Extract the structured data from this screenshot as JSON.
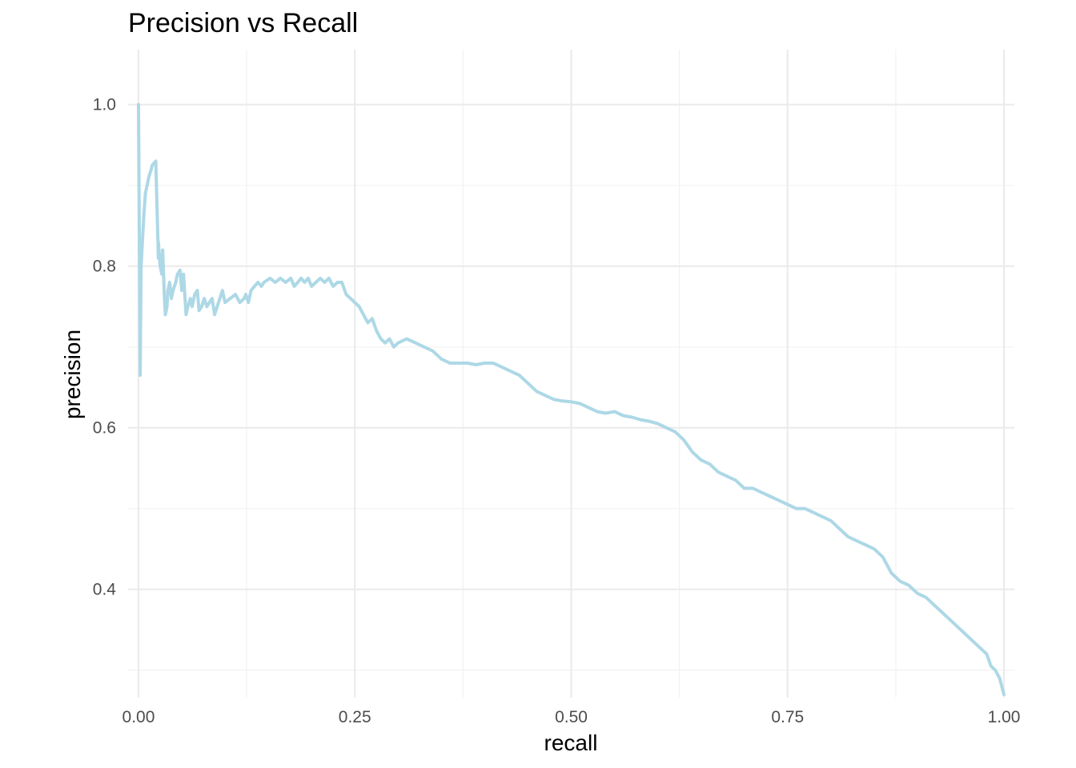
{
  "chart_data": {
    "type": "line",
    "title": "Precision vs Recall",
    "xlabel": "recall",
    "ylabel": "precision",
    "xlim": [
      -0.012,
      1.012
    ],
    "ylim": [
      0.266,
      1.068
    ],
    "x_ticks": [
      0.0,
      0.25,
      0.5,
      0.75,
      1.0
    ],
    "x_tick_labels": [
      "0.00",
      "0.25",
      "0.50",
      "0.75",
      "1.00"
    ],
    "y_ticks": [
      0.4,
      0.6,
      0.8,
      1.0
    ],
    "y_tick_labels": [
      "0.4",
      "0.6",
      "0.8",
      "1.0"
    ],
    "grid": true,
    "line_color": "#add8e6",
    "series": [
      {
        "x": [
          0.0,
          0.002,
          0.003,
          0.006,
          0.008,
          0.012,
          0.016,
          0.02,
          0.023,
          0.023,
          0.025,
          0.027,
          0.028,
          0.03,
          0.031,
          0.033,
          0.034,
          0.036,
          0.038,
          0.04,
          0.043,
          0.045,
          0.048,
          0.05,
          0.052,
          0.055,
          0.057,
          0.06,
          0.062,
          0.065,
          0.068,
          0.07,
          0.073,
          0.076,
          0.079,
          0.082,
          0.085,
          0.088,
          0.091,
          0.094,
          0.097,
          0.1,
          0.106,
          0.112,
          0.117,
          0.122,
          0.124,
          0.127,
          0.13,
          0.134,
          0.138,
          0.142,
          0.145,
          0.152,
          0.158,
          0.164,
          0.17,
          0.176,
          0.18,
          0.184,
          0.188,
          0.192,
          0.196,
          0.2,
          0.205,
          0.21,
          0.215,
          0.22,
          0.225,
          0.23,
          0.235,
          0.24,
          0.245,
          0.25,
          0.255,
          0.26,
          0.265,
          0.27,
          0.275,
          0.28,
          0.285,
          0.29,
          0.295,
          0.3,
          0.31,
          0.32,
          0.33,
          0.34,
          0.35,
          0.36,
          0.37,
          0.38,
          0.39,
          0.4,
          0.41,
          0.42,
          0.43,
          0.44,
          0.45,
          0.46,
          0.47,
          0.48,
          0.49,
          0.5,
          0.51,
          0.52,
          0.53,
          0.54,
          0.55,
          0.56,
          0.57,
          0.58,
          0.59,
          0.6,
          0.61,
          0.62,
          0.63,
          0.64,
          0.65,
          0.66,
          0.67,
          0.68,
          0.69,
          0.7,
          0.71,
          0.72,
          0.73,
          0.74,
          0.75,
          0.76,
          0.77,
          0.78,
          0.79,
          0.8,
          0.81,
          0.82,
          0.83,
          0.84,
          0.85,
          0.86,
          0.87,
          0.88,
          0.89,
          0.9,
          0.91,
          0.92,
          0.93,
          0.94,
          0.95,
          0.96,
          0.97,
          0.98,
          0.985,
          0.99,
          0.995,
          1.0
        ],
        "y": [
          1.0,
          0.665,
          0.8,
          0.86,
          0.89,
          0.91,
          0.925,
          0.93,
          0.81,
          0.83,
          0.8,
          0.79,
          0.82,
          0.76,
          0.74,
          0.75,
          0.77,
          0.78,
          0.76,
          0.77,
          0.78,
          0.79,
          0.795,
          0.77,
          0.79,
          0.74,
          0.75,
          0.76,
          0.75,
          0.765,
          0.77,
          0.745,
          0.75,
          0.76,
          0.75,
          0.755,
          0.76,
          0.74,
          0.75,
          0.76,
          0.77,
          0.755,
          0.76,
          0.765,
          0.755,
          0.76,
          0.765,
          0.755,
          0.77,
          0.775,
          0.78,
          0.775,
          0.78,
          0.785,
          0.78,
          0.785,
          0.78,
          0.785,
          0.775,
          0.78,
          0.785,
          0.78,
          0.785,
          0.775,
          0.78,
          0.785,
          0.78,
          0.785,
          0.775,
          0.78,
          0.78,
          0.765,
          0.76,
          0.755,
          0.75,
          0.74,
          0.73,
          0.735,
          0.72,
          0.71,
          0.705,
          0.71,
          0.7,
          0.705,
          0.71,
          0.705,
          0.7,
          0.695,
          0.685,
          0.68,
          0.68,
          0.68,
          0.678,
          0.68,
          0.68,
          0.675,
          0.67,
          0.665,
          0.655,
          0.645,
          0.64,
          0.635,
          0.633,
          0.632,
          0.63,
          0.625,
          0.62,
          0.618,
          0.62,
          0.615,
          0.613,
          0.61,
          0.608,
          0.605,
          0.6,
          0.595,
          0.585,
          0.57,
          0.56,
          0.555,
          0.545,
          0.54,
          0.535,
          0.525,
          0.525,
          0.52,
          0.515,
          0.51,
          0.505,
          0.5,
          0.5,
          0.495,
          0.49,
          0.485,
          0.475,
          0.465,
          0.46,
          0.455,
          0.45,
          0.44,
          0.42,
          0.41,
          0.405,
          0.395,
          0.39,
          0.38,
          0.37,
          0.36,
          0.35,
          0.34,
          0.33,
          0.32,
          0.305,
          0.3,
          0.29,
          0.27
        ]
      }
    ]
  }
}
